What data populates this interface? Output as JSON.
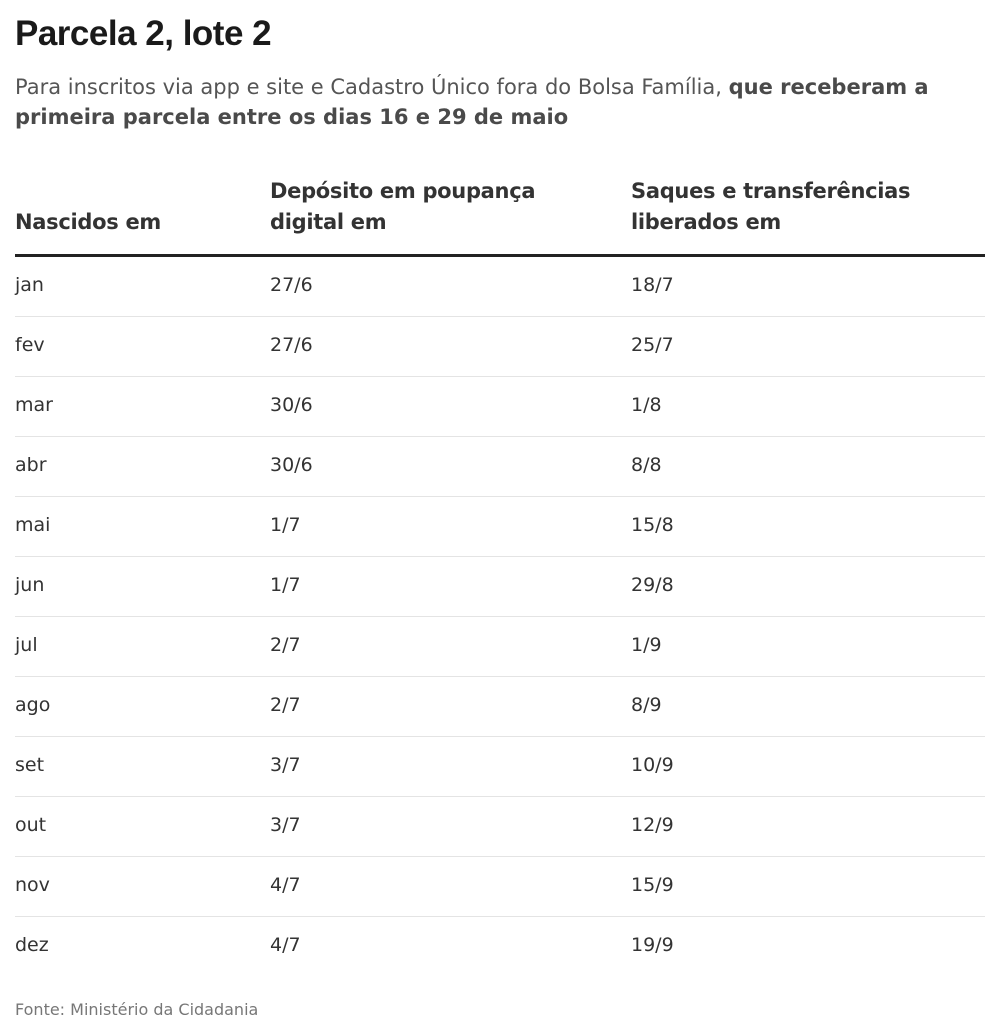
{
  "title": "Parcela 2, lote 2",
  "subtitle": {
    "normal": "Para inscritos via app e site e Cadastro Único fora do Bolsa Família, ",
    "bold": "que receberam a primeira parcela entre os dias 16 e 29 de maio"
  },
  "table": {
    "headers": {
      "col1": "Nascidos em",
      "col2_line1": "Depósito em poupança",
      "col2_line2": "digital em",
      "col3_line1": "Saques e transferências",
      "col3_line2": "liberados em"
    },
    "rows": [
      [
        "jan",
        "27/6",
        "18/7"
      ],
      [
        "fev",
        "27/6",
        "25/7"
      ],
      [
        "mar",
        "30/6",
        "1/8"
      ],
      [
        "abr",
        "30/6",
        "8/8"
      ],
      [
        "mai",
        "1/7",
        "15/8"
      ],
      [
        "jun",
        "1/7",
        "29/8"
      ],
      [
        "jul",
        "2/7",
        "1/9"
      ],
      [
        "ago",
        "2/7",
        "8/9"
      ],
      [
        "set",
        "3/7",
        "10/9"
      ],
      [
        "out",
        "3/7",
        "12/9"
      ],
      [
        "nov",
        "4/7",
        "15/9"
      ],
      [
        "dez",
        "4/7",
        "19/9"
      ]
    ]
  },
  "source": "Fonte: Ministério da Cidadania"
}
